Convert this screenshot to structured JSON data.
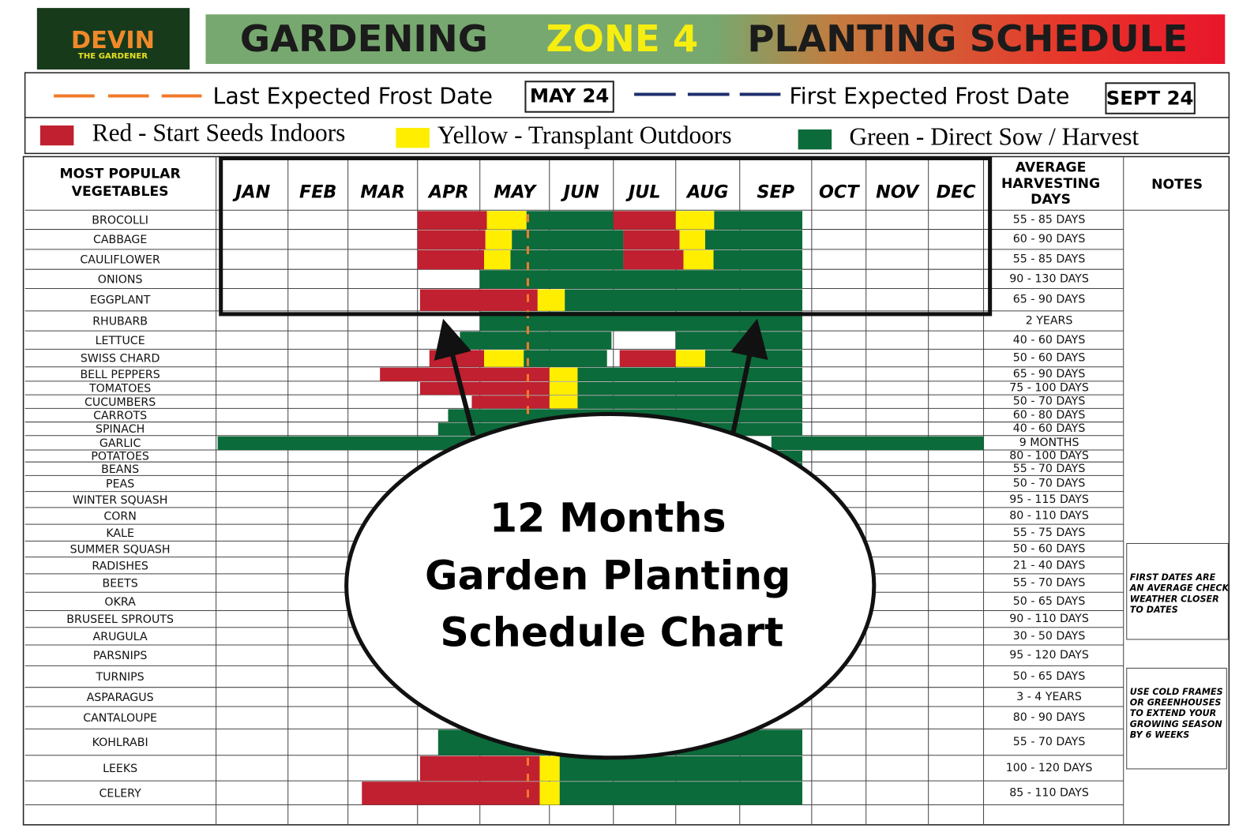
{
  "header": {
    "logo": {
      "name": "DEVIN",
      "tagline": "THE GARDENER"
    },
    "title": [
      "GARDENING",
      "ZONE 4",
      "PLANTING SCHEDULE"
    ]
  },
  "frost": {
    "last": {
      "label": "Last Expected Frost Date",
      "date": "MAY 24"
    },
    "first": {
      "label": "First Expected Frost Date",
      "date": "SEPT 24"
    }
  },
  "legend": [
    {
      "label": "Red - Start Seeds Indoors",
      "color": "#c0202f"
    },
    {
      "label": "Yellow - Transplant Outdoors",
      "color": "#ffee00"
    },
    {
      "label": "Green - Direct Sow / Harvest",
      "color": "#0b6b3a"
    }
  ],
  "table": {
    "headers": {
      "vegetables": [
        "MOST POPULAR",
        "VEGETABLES"
      ],
      "harvest": [
        "AVERAGE",
        "HARVESTING",
        "DAYS"
      ],
      "notes": "NOTES"
    },
    "months": [
      "JAN",
      "FEB",
      "MAR",
      "APR",
      "MAY",
      "JUN",
      "JUL",
      "AUG",
      "SEP",
      "OCT",
      "NOV",
      "DEC"
    ],
    "rows": [
      {
        "name": "BROCOLLI",
        "days": "55 - 85 DAYS",
        "segments": [
          {
            "color": "#c0202f",
            "start": 3,
            "end": 4.1
          },
          {
            "color": "#ffee00",
            "start": 4.1,
            "end": 4.67
          },
          {
            "color": "#0b6b3a",
            "start": 4.67,
            "end": 6
          },
          {
            "color": "#c0202f",
            "start": 6,
            "end": 7
          },
          {
            "color": "#ffee00",
            "start": 7,
            "end": 7.6
          },
          {
            "color": "#0b6b3a",
            "start": 7.6,
            "end": 8.87
          }
        ]
      },
      {
        "name": "CABBAGE",
        "days": "60 - 90 DAYS",
        "segments": [
          {
            "color": "#c0202f",
            "start": 3,
            "end": 4.08
          },
          {
            "color": "#ffee00",
            "start": 4.08,
            "end": 4.46
          },
          {
            "color": "#0b6b3a",
            "start": 4.46,
            "end": 6.16
          },
          {
            "color": "#c0202f",
            "start": 6.16,
            "end": 7.06
          },
          {
            "color": "#ffee00",
            "start": 7.06,
            "end": 7.46
          },
          {
            "color": "#0b6b3a",
            "start": 7.46,
            "end": 8.87
          }
        ]
      },
      {
        "name": "CAULIFLOWER",
        "days": "55 - 85 DAYS",
        "segments": [
          {
            "color": "#c0202f",
            "start": 3,
            "end": 4.06
          },
          {
            "color": "#ffee00",
            "start": 4.06,
            "end": 4.44
          },
          {
            "color": "#0b6b3a",
            "start": 4.44,
            "end": 6.16
          },
          {
            "color": "#c0202f",
            "start": 6.16,
            "end": 7.12
          },
          {
            "color": "#ffee00",
            "start": 7.12,
            "end": 7.59
          },
          {
            "color": "#0b6b3a",
            "start": 7.59,
            "end": 8.87
          }
        ]
      },
      {
        "name": "ONIONS",
        "days": "90 - 130 DAYS",
        "segments": [
          {
            "color": "#0b6b3a",
            "start": 4,
            "end": 8.87
          }
        ]
      },
      {
        "name": "EGGPLANT",
        "days": "65 - 90 DAYS",
        "segments": [
          {
            "color": "#c0202f",
            "start": 3.04,
            "end": 4.83
          },
          {
            "color": "#ffee00",
            "start": 4.83,
            "end": 5.24
          },
          {
            "color": "#0b6b3a",
            "start": 5.24,
            "end": 8.87
          }
        ]
      },
      {
        "name": "RHUBARB",
        "days": "2 YEARS",
        "segments": [
          {
            "color": "#0b6b3a",
            "start": 4,
            "end": 8.87
          }
        ]
      },
      {
        "name": "LETTUCE",
        "days": "40 - 60 DAYS",
        "segments": [
          {
            "color": "#0b6b3a",
            "start": 3.68,
            "end": 5.97
          },
          {
            "color": "#0b6b3a",
            "start": 7,
            "end": 8.87
          }
        ]
      },
      {
        "name": "SWISS CHARD",
        "days": "50 - 60 DAYS",
        "segments": [
          {
            "color": "#c0202f",
            "start": 3.19,
            "end": 4.06
          },
          {
            "color": "#ffee00",
            "start": 4.06,
            "end": 4.63
          },
          {
            "color": "#0b6b3a",
            "start": 4.63,
            "end": 5.9
          },
          {
            "color": "#c0202f",
            "start": 6.1,
            "end": 7
          },
          {
            "color": "#ffee00",
            "start": 7,
            "end": 7.46
          },
          {
            "color": "#0b6b3a",
            "start": 7.46,
            "end": 8.87
          }
        ]
      },
      {
        "name": "BELL PEPPERS",
        "days": "65 - 90 DAYS",
        "segments": [
          {
            "color": "#c0202f",
            "start": 2.46,
            "end": 5
          },
          {
            "color": "#ffee00",
            "start": 5,
            "end": 5.44
          },
          {
            "color": "#0b6b3a",
            "start": 5.44,
            "end": 8.87
          }
        ]
      },
      {
        "name": "TOMATOES",
        "days": "75 - 100 DAYS",
        "segments": [
          {
            "color": "#c0202f",
            "start": 3.04,
            "end": 5
          },
          {
            "color": "#ffee00",
            "start": 5,
            "end": 5.44
          },
          {
            "color": "#0b6b3a",
            "start": 5.44,
            "end": 8.87
          }
        ]
      },
      {
        "name": "CUCUMBERS",
        "days": "50 - 70 DAYS",
        "segments": [
          {
            "color": "#c0202f",
            "start": 3.87,
            "end": 5
          },
          {
            "color": "#ffee00",
            "start": 5,
            "end": 5.44
          },
          {
            "color": "#0b6b3a",
            "start": 5.44,
            "end": 8.87
          }
        ]
      },
      {
        "name": "CARROTS",
        "days": "60 - 80 DAYS",
        "segments": [
          {
            "color": "#0b6b3a",
            "start": 3.49,
            "end": 8.87
          }
        ]
      },
      {
        "name": "SPINACH",
        "days": "40 - 60 DAYS",
        "segments": [
          {
            "color": "#0b6b3a",
            "start": 3.33,
            "end": 8.87
          }
        ]
      },
      {
        "name": "GARLIC",
        "days": "9 MONTHS",
        "segments": [
          {
            "color": "#0b6b3a",
            "start": 0,
            "end": 8
          },
          {
            "color": "#0b6b3a",
            "start": 8.44,
            "end": 12
          }
        ]
      },
      {
        "name": "POTATOES",
        "days": "80 - 100 DAYS",
        "segments": [
          {
            "color": "#0b6b3a",
            "start": 4,
            "end": 8.87
          }
        ]
      },
      {
        "name": "BEANS",
        "days": "55 - 70 DAYS",
        "segments": [
          {
            "color": "#0b6b3a",
            "start": 4,
            "end": 8.87
          }
        ]
      },
      {
        "name": "PEAS",
        "days": "50 - 70 DAYS",
        "segments": []
      },
      {
        "name": "WINTER SQUASH",
        "days": "95 - 115 DAYS",
        "segments": []
      },
      {
        "name": "CORN",
        "days": "80 - 110 DAYS",
        "segments": []
      },
      {
        "name": "KALE",
        "days": "55 - 75 DAYS",
        "segments": []
      },
      {
        "name": "SUMMER SQUASH",
        "days": "50 - 60 DAYS",
        "segments": []
      },
      {
        "name": "RADISHES",
        "days": "21 - 40 DAYS",
        "segments": []
      },
      {
        "name": "BEETS",
        "days": "55 - 70 DAYS",
        "segments": []
      },
      {
        "name": "OKRA",
        "days": "50 - 65 DAYS",
        "segments": []
      },
      {
        "name": "BRUSEEL SPROUTS",
        "days": "90 - 110 DAYS",
        "segments": []
      },
      {
        "name": "ARUGULA",
        "days": "30 - 50 DAYS",
        "segments": []
      },
      {
        "name": "PARSNIPS",
        "days": "95 - 120 DAYS",
        "segments": []
      },
      {
        "name": "TURNIPS",
        "days": "50 - 65 DAYS",
        "segments": []
      },
      {
        "name": "ASPARAGUS",
        "days": "3 - 4 YEARS",
        "segments": []
      },
      {
        "name": "CANTALOUPE",
        "days": "80 - 90 DAYS",
        "segments": []
      },
      {
        "name": "KOHLRABI",
        "days": "55 - 70 DAYS",
        "segments": [
          {
            "color": "#0b6b3a",
            "start": 3.33,
            "end": 8.87
          }
        ]
      },
      {
        "name": "LEEKS",
        "days": "100 - 120 DAYS",
        "segments": [
          {
            "color": "#c0202f",
            "start": 3.04,
            "end": 4.86
          },
          {
            "color": "#ffee00",
            "start": 4.86,
            "end": 5.16
          },
          {
            "color": "#0b6b3a",
            "start": 5.16,
            "end": 8.87
          }
        ]
      },
      {
        "name": "CELERY",
        "days": "85 - 110 DAYS",
        "segments": [
          {
            "color": "#c0202f",
            "start": 2.2,
            "end": 4.86
          },
          {
            "color": "#ffee00",
            "start": 4.86,
            "end": 5.16
          },
          {
            "color": "#0b6b3a",
            "start": 5.16,
            "end": 8.87
          }
        ]
      }
    ]
  },
  "notes": [
    [
      "FIRST DATES ARE",
      "AN AVERAGE CHECK",
      "WEATHER CLOSER",
      "TO DATES"
    ],
    [
      "USE COLD FRAMES",
      "OR GREENHOUSES",
      "TO EXTEND YOUR",
      "GROWING SEASON",
      "BY 6 WEEKS"
    ]
  ],
  "callout": [
    "12 Months",
    "Garden Planting",
    "Schedule Chart"
  ]
}
